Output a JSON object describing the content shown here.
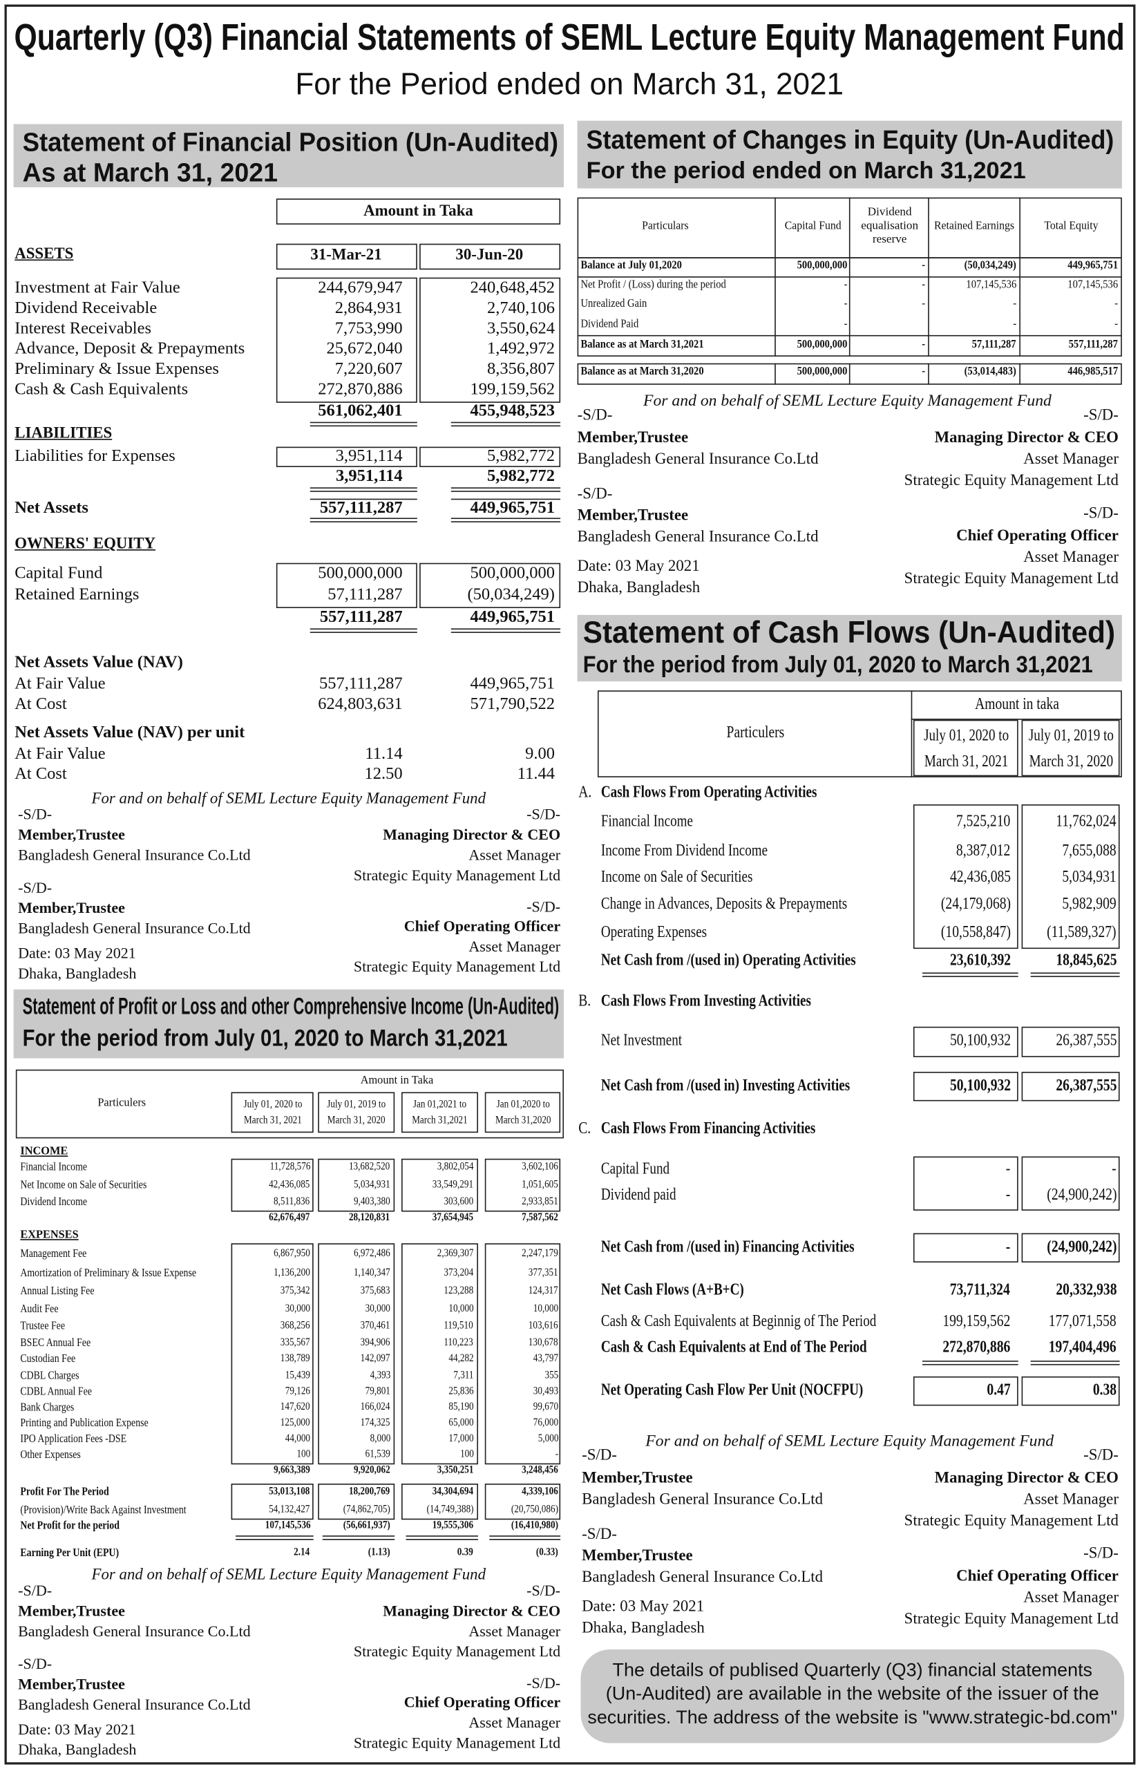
{
  "header": {
    "title": "Quarterly (Q3) Financial Statements of SEML Lecture Equity Management Fund",
    "subtitle": "For the Period ended on March 31, 2021"
  },
  "financial_position": {
    "title": "Statement of Financial Position (Un-Audited)",
    "subtitle": "As at March 31, 2021",
    "amount_header": "Amount in Taka",
    "columns": [
      "31-Mar-21",
      "30-Jun-20"
    ],
    "assets": {
      "heading": "ASSETS",
      "items": [
        [
          "Investment at Fair Value",
          "244,679,947",
          "240,648,452"
        ],
        [
          "Dividend Receivable",
          "2,864,931",
          "2,740,106"
        ],
        [
          "Interest Receivables",
          "7,753,990",
          "3,550,624"
        ],
        [
          "Advance, Deposit & Prepayments",
          "25,672,040",
          "1,492,972"
        ],
        [
          "Preliminary & Issue Expenses",
          "7,220,607",
          "8,356,807"
        ],
        [
          "Cash & Cash Equivalents",
          "272,870,886",
          "199,159,562"
        ]
      ],
      "total": [
        "561,062,401",
        "455,948,523"
      ]
    },
    "liabilities": {
      "heading": "LIABILITIES",
      "items": [
        [
          "Liabilities for Expenses",
          "3,951,114",
          "5,982,772"
        ]
      ],
      "total": [
        "3,951,114",
        "5,982,772"
      ]
    },
    "net_assets": [
      "Net Assets",
      "557,111,287",
      "449,965,751"
    ],
    "owners_equity": {
      "heading": "OWNERS' EQUITY",
      "items": [
        [
          "Capital Fund",
          "500,000,000",
          "500,000,000"
        ],
        [
          "Retained Earnings",
          "57,111,287",
          "(50,034,249)"
        ]
      ],
      "total": [
        "557,111,287",
        "449,965,751"
      ]
    },
    "nav": {
      "heading": "Net Assets Value (NAV)",
      "items": [
        [
          "At Fair Value",
          "557,111,287",
          "449,965,751"
        ],
        [
          "At Cost",
          "624,803,631",
          "571,790,522"
        ]
      ]
    },
    "nav_per_unit": {
      "heading": "Net Assets Value (NAV) per unit",
      "items": [
        [
          "At Fair Value",
          "11.14",
          "9.00"
        ],
        [
          "At Cost",
          "12.50",
          "11.44"
        ]
      ]
    },
    "signature": {
      "intro": "For and on behalf of SEML Lecture Equity Management Fund",
      "left": [
        "-S/D-",
        "Member,Trustee",
        "Bangladesh General Insurance Co.Ltd",
        "-S/D-",
        "Member,Trustee",
        "Bangladesh General Insurance Co.Ltd",
        "Date: 03 May 2021",
        "Dhaka, Bangladesh"
      ],
      "right": [
        "-S/D-",
        "Managing Director & CEO",
        "Asset Manager",
        "Strategic Equity Management Ltd",
        "-S/D-",
        "Chief Operating Officer",
        "Asset Manager",
        "Strategic Equity Management Ltd"
      ]
    }
  },
  "profit_or_loss": {
    "title": "Statement of Profit or Loss and other Comprehensive Income (Un-Audited)",
    "subtitle": "For the period from July 01, 2020 to March 31,2021",
    "amount_header": "Amount in Taka",
    "particulars_header": "Particulers",
    "columns": [
      [
        "July 01, 2020 to",
        "March 31, 2021"
      ],
      [
        "July 01, 2019 to",
        "March 31, 2020"
      ],
      [
        "Jan 01,2021 to",
        "March 31,2021"
      ],
      [
        "Jan 01,2020 to",
        "March 31,2020"
      ]
    ],
    "income": {
      "heading": "INCOME",
      "items": [
        [
          "Financial Income",
          "11,728,576",
          "13,682,520",
          "3,802,054",
          "3,602,106"
        ],
        [
          "Net Income on Sale of  Securities",
          "42,436,085",
          "5,034,931",
          "33,549,291",
          "1,051,605"
        ],
        [
          "Dividend Income",
          "8,511,836",
          "9,403,380",
          "303,600",
          "2,933,851"
        ]
      ],
      "total": [
        "62,676,497",
        "28,120,831",
        "37,654,945",
        "7,587,562"
      ]
    },
    "expenses": {
      "heading": "EXPENSES",
      "items": [
        [
          "Management Fee",
          "6,867,950",
          "6,972,486",
          "2,369,307",
          "2,247,179"
        ],
        [
          "Amortization of Preliminary & Issue Expense",
          "1,136,200",
          "1,140,347",
          "373,204",
          "377,351"
        ],
        [
          "Annual Listing  Fee",
          "375,342",
          "375,683",
          "123,288",
          "124,317"
        ],
        [
          "Audit Fee",
          "30,000",
          "30,000",
          "10,000",
          "10,000"
        ],
        [
          "Trustee Fee",
          "368,256",
          "370,461",
          "119,510",
          "103,616"
        ],
        [
          "BSEC Annual Fee",
          "335,567",
          "394,906",
          "110,223",
          "130,678"
        ],
        [
          "Custodian Fee",
          "138,789",
          "142,097",
          "44,282",
          "43,797"
        ],
        [
          "CDBL Charges",
          "15,439",
          "4,393",
          "7,311",
          "355"
        ],
        [
          "CDBL Annual Fee",
          "79,126",
          "79,801",
          "25,836",
          "30,493"
        ],
        [
          "Bank Charges",
          "147,620",
          "166,024",
          "85,190",
          "99,670"
        ],
        [
          "Printing and Publication Expense",
          "125,000",
          "174,325",
          "65,000",
          "76,000"
        ],
        [
          "IPO Application Fees -DSE",
          "44,000",
          "8,000",
          "17,000",
          "5,000"
        ],
        [
          "Other Expenses",
          "100",
          "61,539",
          "100",
          "-"
        ]
      ],
      "total": [
        "9,663,389",
        "9,920,062",
        "3,350,251",
        "3,248,456"
      ]
    },
    "results": [
      [
        "Profit For The Period",
        "53,013,108",
        "18,200,769",
        "34,304,694",
        "4,339,106"
      ],
      [
        "(Provision)/Write Back Against Investment",
        "54,132,427",
        "(74,862,705)",
        "(14,749,388)",
        "(20,750,086)"
      ],
      [
        "Net Profit for the period",
        "107,145,536",
        "(56,661,937)",
        "19,555,306",
        "(16,410,980)"
      ]
    ],
    "epu": [
      "Earning Per Unit (EPU)",
      "2.14",
      "(1.13)",
      "0.39",
      "(0.33)"
    ],
    "signature": {
      "intro": "For and on behalf of SEML Lecture Equity Management Fund",
      "left": [
        "-S/D-",
        "Member,Trustee",
        "Bangladesh General Insurance Co.Ltd",
        "-S/D-",
        "Member,Trustee",
        "Bangladesh General Insurance Co.Ltd",
        "Date: 03 May 2021",
        "Dhaka, Bangladesh"
      ],
      "right": [
        "-S/D-",
        "Managing Director & CEO",
        "Asset Manager",
        "Strategic Equity Management Ltd",
        "-S/D-",
        "Chief Operating Officer",
        "Asset Manager",
        "Strategic Equity Management Ltd"
      ]
    }
  },
  "changes_in_equity": {
    "title": "Statement of Changes in Equity (Un-Audited)",
    "subtitle": "For the period ended on March 31,2021",
    "headers": [
      "Particulars",
      "Capital Fund",
      "Dividend equalisation reserve",
      "Retained Earnings",
      "Total Equity"
    ],
    "rows": [
      [
        "Balance at July 01,2020",
        "500,000,000",
        "-",
        "(50,034,249)",
        "449,965,751"
      ],
      [
        "Net Profit / (Loss) during the period",
        "-",
        "-",
        "107,145,536",
        "107,145,536"
      ],
      [
        "Unrealized Gain",
        "-",
        "-",
        "-",
        "-"
      ],
      [
        "Dividend Paid",
        "-",
        "",
        "-",
        "-"
      ],
      [
        "Balance as at March 31,2021",
        "500,000,000",
        "-",
        "57,111,287",
        "557,111,287"
      ],
      [
        "Balance as at March 31,2020",
        "500,000,000",
        "-",
        "(53,014,483)",
        "446,985,517"
      ]
    ],
    "signature": {
      "intro": "For and on behalf of SEML Lecture Equity Management Fund",
      "left": [
        "-S/D-",
        "Member,Trustee",
        "Bangladesh General Insurance Co.Ltd",
        "-S/D-",
        "Member,Trustee",
        "Bangladesh General Insurance Co.Ltd",
        "Date: 03 May 2021",
        "Dhaka, Bangladesh"
      ],
      "right": [
        "-S/D-",
        "Managing Director & CEO",
        "Asset Manager",
        "Strategic Equity Management Ltd",
        "-S/D-",
        "Chief Operating Officer",
        "Asset Manager",
        "Strategic Equity Management Ltd"
      ]
    }
  },
  "cash_flows": {
    "title": "Statement of Cash Flows (Un-Audited)",
    "subtitle": "For the period from July 01, 2020 to March 31,2021",
    "amount_header": "Amount in taka",
    "particulars_header": "Particulers",
    "columns": [
      [
        "July 01, 2020 to",
        "March 31, 2021"
      ],
      [
        "July 01, 2019 to",
        "March 31, 2020"
      ]
    ],
    "operating": {
      "letter": "A.",
      "heading": "Cash Flows From Operating Activities",
      "items": [
        [
          "Financial Income",
          "7,525,210",
          "11,762,024"
        ],
        [
          "Income From Dividend Income",
          "8,387,012",
          "7,655,088"
        ],
        [
          "Income on Sale of Securities",
          "42,436,085",
          "5,034,931"
        ],
        [
          "Change in Advances, Deposits & Prepayments",
          "(24,179,068)",
          "5,982,909"
        ],
        [
          "Operating Expenses",
          "(10,558,847)",
          "(11,589,327)"
        ]
      ],
      "total": [
        "Net Cash from /(used in) Operating Activities",
        "23,610,392",
        "18,845,625"
      ]
    },
    "investing": {
      "letter": "B.",
      "heading": "Cash Flows From Investing Activities",
      "items": [
        [
          "Net Investment",
          "50,100,932",
          "26,387,555"
        ]
      ],
      "total": [
        "Net Cash from /(used in) Investing Activities",
        "50,100,932",
        "26,387,555"
      ]
    },
    "financing": {
      "letter": "C.",
      "heading": "Cash Flows From Financing Activities",
      "items": [
        [
          "Capital Fund",
          "-",
          "-"
        ],
        [
          "Dividend paid",
          "-",
          "(24,900,242)"
        ]
      ],
      "total": [
        "Net Cash from /(used in) Financing  Activities",
        "-",
        "(24,900,242)"
      ]
    },
    "summary": [
      [
        "Net Cash Flows (A+B+C)",
        "73,711,324",
        "20,332,938"
      ],
      [
        "Cash & Cash Equivalents at Beginnig of The Period",
        "199,159,562",
        "177,071,558"
      ],
      [
        "Cash & Cash Equivalents at End of The Period",
        "272,870,886",
        "197,404,496"
      ],
      [
        "Net Operating Cash Flow Per Unit (NOCFPU)",
        "0.47",
        "0.38"
      ]
    ],
    "signature": {
      "intro": "For and on behalf of SEML Lecture Equity Management Fund",
      "left": [
        "-S/D-",
        "Member,Trustee",
        "Bangladesh General Insurance Co.Ltd",
        "-S/D-",
        "Member,Trustee",
        "Bangladesh General Insurance Co.Ltd",
        "Date: 03 May 2021",
        "Dhaka, Bangladesh"
      ],
      "right": [
        "-S/D-",
        "Managing Director & CEO",
        "Asset Manager",
        "Strategic Equity Management Ltd",
        "-S/D-",
        "Chief Operating Officer",
        "Asset Manager",
        "Strategic Equity Management Ltd"
      ]
    }
  },
  "footer": {
    "lines": [
      "The details of publised Quarterly (Q3) financial statements",
      "(Un-Audited) are available in the website of the issuer of the",
      "securities. The address of the website is \"www.strategic-bd.com\""
    ]
  }
}
